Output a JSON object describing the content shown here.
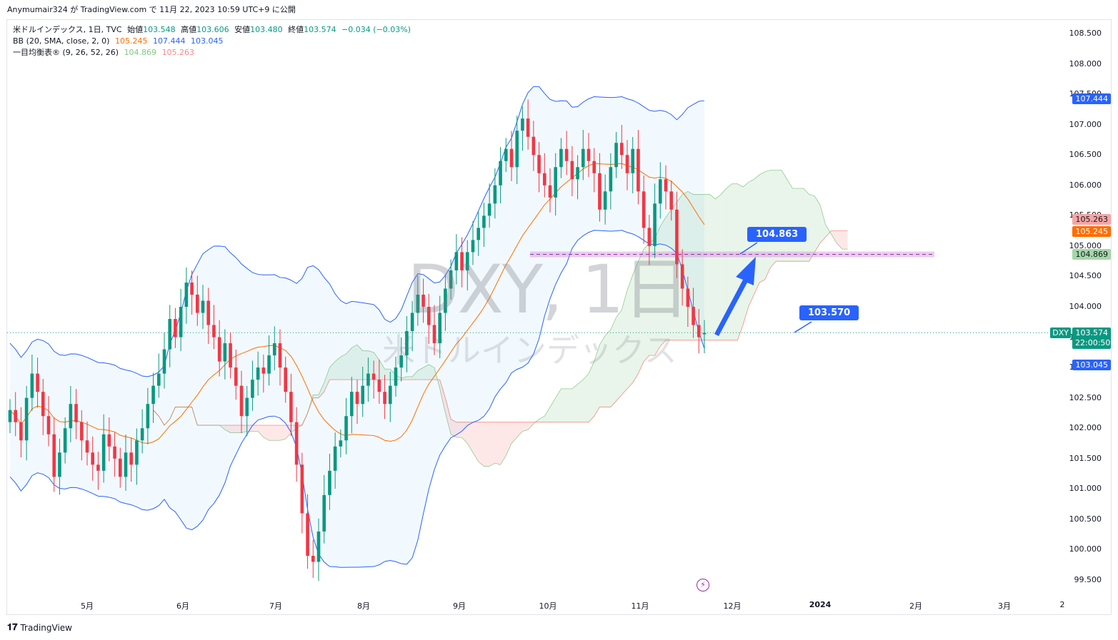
{
  "header": {
    "publish_info": "Anymumair324 が TradingView.com で 11月 22, 2023 10:59 UTC+9 に公開"
  },
  "legend": {
    "symbol": "米ドルインデックス, 1日, TVC",
    "open_label": "始値",
    "open": "103.548",
    "high_label": "高値",
    "high": "103.606",
    "low_label": "安値",
    "low": "103.480",
    "close_label": "終値",
    "close": "103.574",
    "change": "−0.034 (−0.03%)",
    "bb_label": "BB (20, SMA, close, 2, 0)",
    "bb_basis": "105.245",
    "bb_upper": "107.444",
    "bb_lower": "103.045",
    "ichimoku_label": "一目均衡表® (9, 26, 52, 26)",
    "ichimoku_a": "104.869",
    "ichimoku_b": "105.263"
  },
  "watermark": {
    "title": "DXY, 1日",
    "subtitle": "米ドルインデックス"
  },
  "price_axis": {
    "ticks": [
      "108.500",
      "108.000",
      "107.500",
      "107.000",
      "106.500",
      "106.000",
      "105.500",
      "105.000",
      "104.500",
      "104.000",
      "103.500",
      "103.000",
      "102.500",
      "102.000",
      "101.500",
      "101.000",
      "100.500",
      "100.000",
      "99.500"
    ],
    "badges": {
      "bb_upper": "107.444",
      "span_b": "105.263",
      "bb_basis": "105.245",
      "span_a": "104.869",
      "symbol": "DXY",
      "last_price": "103.574",
      "countdown": "22:00:50",
      "bb_lower": "103.045"
    }
  },
  "time_axis": {
    "labels": [
      "5月",
      "6月",
      "7月",
      "8月",
      "9月",
      "10月",
      "11月",
      "12月",
      "2024",
      "2月",
      "3月",
      "2"
    ]
  },
  "annotations": {
    "callout_high": "104.863",
    "callout_low": "103.570"
  },
  "footer": {
    "brand": "TradingView"
  },
  "colors": {
    "up": "#089981",
    "down": "#f23645",
    "bb_line": "#2962ff",
    "bb_basis": "#ff6d00",
    "bb_fill": "#2196f3",
    "cloud_green": "#4caf50",
    "cloud_red": "#f44336",
    "accent": "#2962ff",
    "zone": "#ce93d8"
  },
  "chart_data": {
    "type": "candlestick",
    "symbol": "DXY",
    "ylim": [
      99.3,
      108.8
    ],
    "x": [
      "5月",
      "6月",
      "7月",
      "8月",
      "9月",
      "10月",
      "11月",
      "12月",
      "2024",
      "2月",
      "3月"
    ],
    "last": 103.574,
    "bollinger": {
      "upper": 107.444,
      "basis": 105.245,
      "lower": 103.045
    },
    "ichimoku": {
      "span_a": 104.869,
      "span_b": 105.263
    },
    "horizontal_zone": 104.863,
    "callouts": [
      104.863,
      103.57
    ],
    "candles_close": [
      102.3,
      102.1,
      101.8,
      102.5,
      102.9,
      102.6,
      102.2,
      101.9,
      101.2,
      101.6,
      102.0,
      102.4,
      102.1,
      101.8,
      101.6,
      101.4,
      101.3,
      101.9,
      101.7,
      101.5,
      101.2,
      101.6,
      101.4,
      101.8,
      102.0,
      102.4,
      102.7,
      102.9,
      103.3,
      103.8,
      103.5,
      104.0,
      104.4,
      104.2,
      103.9,
      104.1,
      103.7,
      103.5,
      103.1,
      103.4,
      103.0,
      102.7,
      102.2,
      102.5,
      102.8,
      103.0,
      102.9,
      103.2,
      103.4,
      103.0,
      102.6,
      102.1,
      101.4,
      100.6,
      99.9,
      99.8,
      100.3,
      100.9,
      101.3,
      101.7,
      101.8,
      102.2,
      102.6,
      102.4,
      102.7,
      102.9,
      102.8,
      102.6,
      102.4,
      102.7,
      103.0,
      103.2,
      103.6,
      103.9,
      104.2,
      104.0,
      103.7,
      103.4,
      103.9,
      104.3,
      104.6,
      104.9,
      104.6,
      104.9,
      105.1,
      105.3,
      105.5,
      105.7,
      106.0,
      106.4,
      106.6,
      106.3,
      106.9,
      107.1,
      106.8,
      106.5,
      106.2,
      106.0,
      105.8,
      106.3,
      106.6,
      106.4,
      106.1,
      106.3,
      106.6,
      106.4,
      106.2,
      105.6,
      105.9,
      106.3,
      106.7,
      106.5,
      106.2,
      106.6,
      105.9,
      105.3,
      105.0,
      105.7,
      106.1,
      105.9,
      105.6,
      104.7,
      104.3,
      104.0,
      103.7,
      103.5,
      103.57
    ],
    "candles_open": [
      102.1,
      102.3,
      102.1,
      101.8,
      102.5,
      102.9,
      102.6,
      102.2,
      101.9,
      101.2,
      101.6,
      102.0,
      102.4,
      102.1,
      101.8,
      101.6,
      101.4,
      101.3,
      101.9,
      101.7,
      101.5,
      101.2,
      101.6,
      101.4,
      101.8,
      102.0,
      102.4,
      102.7,
      102.9,
      103.3,
      103.8,
      103.5,
      104.0,
      104.4,
      104.2,
      103.9,
      104.1,
      103.7,
      103.5,
      103.1,
      103.4,
      103.0,
      102.7,
      102.2,
      102.5,
      102.8,
      103.0,
      102.9,
      103.2,
      103.4,
      103.0,
      102.6,
      102.1,
      101.4,
      100.6,
      99.9,
      99.8,
      100.3,
      100.9,
      101.3,
      101.7,
      101.8,
      102.2,
      102.6,
      102.4,
      102.7,
      102.9,
      102.8,
      102.6,
      102.4,
      102.7,
      103.0,
      103.2,
      103.6,
      103.9,
      104.2,
      104.0,
      103.7,
      103.4,
      103.9,
      104.3,
      104.6,
      104.9,
      104.6,
      104.9,
      105.1,
      105.3,
      105.5,
      105.7,
      106.0,
      106.4,
      106.6,
      106.3,
      106.9,
      107.1,
      106.8,
      106.5,
      106.2,
      106.0,
      105.8,
      106.3,
      106.6,
      106.4,
      106.1,
      106.3,
      106.6,
      106.4,
      106.2,
      105.6,
      105.9,
      106.3,
      106.7,
      106.5,
      106.2,
      106.6,
      105.9,
      105.3,
      105.0,
      105.7,
      106.1,
      105.9,
      105.6,
      104.7,
      104.3,
      104.0,
      103.7,
      103.548
    ]
  }
}
